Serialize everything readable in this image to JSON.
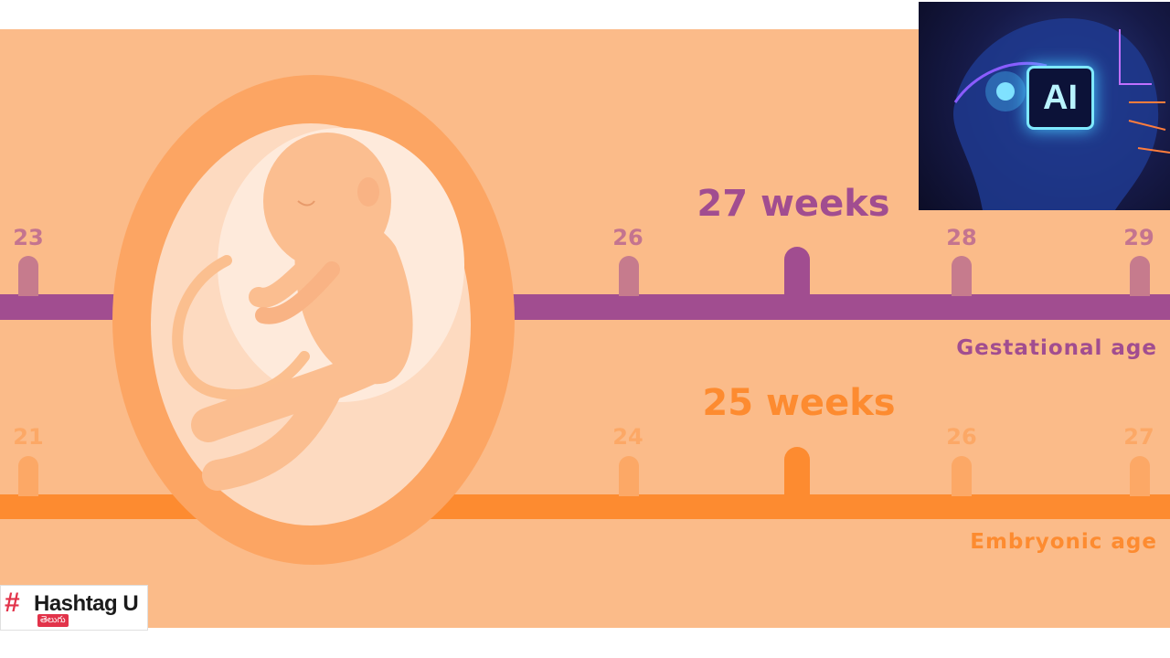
{
  "gestational": {
    "headline": "27 weeks",
    "axis_title": "Gestational age",
    "tick_labels": [
      "23",
      "26",
      "28",
      "29"
    ]
  },
  "embryonic": {
    "headline": "25 weeks",
    "axis_title": "Embryonic age",
    "tick_labels": [
      "21",
      "24",
      "26",
      "27"
    ]
  },
  "ai_thumbnail": {
    "badge_text": "AI"
  },
  "logo": {
    "brand": "Hashtag U",
    "sub": "తెలుగు"
  },
  "colors": {
    "background": "#fbbb89",
    "gestational": "#a14d90",
    "embryonic": "#fd8b30"
  }
}
